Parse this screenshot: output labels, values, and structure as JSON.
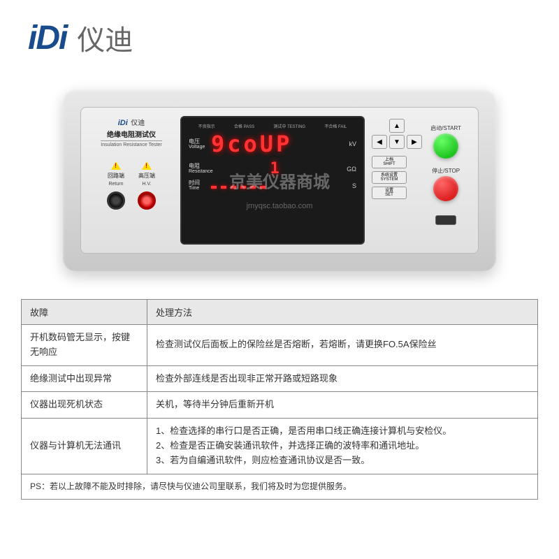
{
  "logo": {
    "idi": "iDi",
    "cn": "仪迪"
  },
  "device": {
    "brand_logo": "iDi",
    "brand_cn": "仪迪",
    "title_cn": "绝缘电阻测试仪",
    "title_en": "Insulation Resistance Tester",
    "terminal_left": {
      "cn": "回路端",
      "en": "Return"
    },
    "terminal_right": {
      "cn": "高压端",
      "en": "H.V."
    },
    "lcd": {
      "top_labels": [
        "不良指示",
        "合格 PASS",
        "测试中 TESTING",
        "不合格 FAIL"
      ],
      "row1_label_cn": "电压",
      "row1_label_en": "Voltage",
      "row1_value": "9coUP",
      "row1_unit": "kV",
      "row2_label_cn": "电阻",
      "row2_label_en": "Resistance",
      "row2_value": "1",
      "row2_unit": "GΩ",
      "row3_label_cn": "时间",
      "row3_label_en": "Time",
      "row3_unit": "S"
    },
    "buttons": {
      "shift_cn": "上档",
      "shift_en": "SHIFT",
      "system_cn": "系统设置",
      "system_en": "SYSTEM",
      "set_cn": "设置",
      "set_en": "SET",
      "start": "启动/START",
      "stop": "停止/STOP"
    }
  },
  "watermark": {
    "main": "京美仪器商城",
    "url": "jmyqsc.taobao.com"
  },
  "table": {
    "header": {
      "col1": "故障",
      "col2": "处理方法"
    },
    "rows": [
      {
        "fault": "开机数码管无显示，按键无响应",
        "fix": "检查测试仪后面板上的保险丝是否熔断，若熔断，请更换FO.5A保险丝"
      },
      {
        "fault": "绝缘测试中出现异常",
        "fix": "检查外部连线是否出现非正常开路或短路现象"
      },
      {
        "fault": "仪器出现死机状态",
        "fix": "关机，等待半分钟后重新开机"
      },
      {
        "fault": "仪器与计算机无法通讯",
        "fix": "1、检查选择的串行口是否正确，是否用串口线正确连接计算机与安检仪。\n2、检查是否正确安装通讯软件，并选择正确的波特率和通讯地址。\n3、若为自编通讯软件，则应检查通讯协议是否一致。"
      }
    ],
    "ps": "PS：若以上故障不能及时排除，请尽快与仪迪公司里联系，我们将及时为您提供服务。"
  },
  "colors": {
    "brand_blue": "#1a4b8c",
    "led_red": "#ff3333",
    "btn_green": "#00aa00",
    "btn_red": "#cc0000",
    "warn_yellow": "#ffdd00"
  }
}
